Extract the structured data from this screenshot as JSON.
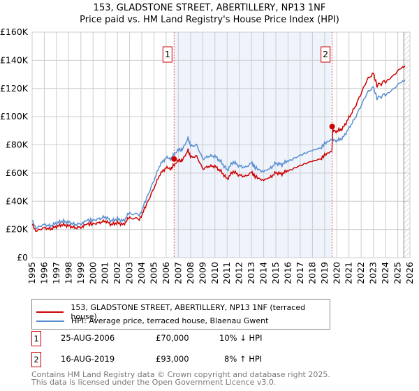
{
  "header": {
    "title": "153, GLADSTONE STREET, ABERTILLERY, NP13 1NF",
    "subtitle": "Price paid vs. HM Land Registry's House Price Index (HPI)"
  },
  "chart_data": {
    "type": "line",
    "xlim": [
      1995,
      2026
    ],
    "ylim": [
      0,
      160000
    ],
    "x_ticks": [
      "1995",
      "1996",
      "1997",
      "1998",
      "1999",
      "2000",
      "2001",
      "2002",
      "2003",
      "2004",
      "2005",
      "2006",
      "2007",
      "2008",
      "2009",
      "2010",
      "2011",
      "2012",
      "2013",
      "2014",
      "2015",
      "2016",
      "2017",
      "2018",
      "2019",
      "2020",
      "2021",
      "2022",
      "2023",
      "2024",
      "2025",
      "2026"
    ],
    "y_ticks": [
      "£0",
      "£20K",
      "£40K",
      "£60K",
      "£80K",
      "£100K",
      "£120K",
      "£140K",
      "£160K"
    ],
    "shaded_region": [
      2006.65,
      2019.62
    ],
    "forecast_hatch_from": 2025.5,
    "series": [
      {
        "name": "153, GLADSTONE STREET, ABERTILLERY, NP13 1NF (terraced house)",
        "color": "#cc0000"
      },
      {
        "name": "HPI: Average price, terraced house, Blaenau Gwent",
        "color": "#5b8fd0",
        "points": [
          [
            1995,
            26.5
          ],
          [
            1995.3,
            21
          ],
          [
            1996,
            23.5
          ],
          [
            1996.5,
            22.5
          ],
          [
            1997,
            24.5
          ],
          [
            1997.5,
            26
          ],
          [
            1998,
            25
          ],
          [
            1998.5,
            23.5
          ],
          [
            1999,
            24
          ],
          [
            1999.4,
            26.5
          ],
          [
            2000,
            26.5
          ],
          [
            2000.5,
            27.5
          ],
          [
            2001,
            29
          ],
          [
            2001.5,
            26
          ],
          [
            2002,
            27.5
          ],
          [
            2002.5,
            26
          ],
          [
            2003,
            32
          ],
          [
            2003.8,
            29.5
          ],
          [
            2004.3,
            40
          ],
          [
            2005,
            55
          ],
          [
            2005.5,
            66
          ],
          [
            2006,
            71
          ],
          [
            2006.4,
            70
          ],
          [
            2006.6,
            73
          ],
          [
            2007,
            77
          ],
          [
            2007.3,
            76
          ],
          [
            2007.8,
            85
          ],
          [
            2008,
            79
          ],
          [
            2008.5,
            80
          ],
          [
            2009,
            70
          ],
          [
            2009.5,
            72
          ],
          [
            2010,
            72
          ],
          [
            2010.5,
            68
          ],
          [
            2011,
            62
          ],
          [
            2011.5,
            68
          ],
          [
            2012,
            65
          ],
          [
            2012.5,
            64
          ],
          [
            2013,
            67
          ],
          [
            2013.3,
            64
          ],
          [
            2013.9,
            61
          ],
          [
            2014.5,
            63
          ],
          [
            2015,
            67
          ],
          [
            2015.5,
            66
          ],
          [
            2016,
            69
          ],
          [
            2017,
            73
          ],
          [
            2018,
            76
          ],
          [
            2018.7,
            78
          ],
          [
            2019,
            81
          ],
          [
            2019.6,
            84
          ],
          [
            2020,
            83
          ],
          [
            2020.5,
            85
          ],
          [
            2021,
            92
          ],
          [
            2021.5,
            99
          ],
          [
            2022,
            108
          ],
          [
            2022.5,
            117
          ],
          [
            2023,
            121
          ],
          [
            2023.3,
            113
          ],
          [
            2024,
            116
          ],
          [
            2025,
            123
          ],
          [
            2025.6,
            126
          ]
        ]
      }
    ],
    "red_factor_before_sale2": 0.9,
    "red_factor_after_sale2": 1.08,
    "sales": [
      {
        "label": "1",
        "x": 2006.65,
        "value": 70000
      },
      {
        "label": "2",
        "x": 2019.62,
        "value": 93000
      }
    ]
  },
  "legend": {
    "items": [
      "153, GLADSTONE STREET, ABERTILLERY, NP13 1NF (terraced house)",
      "HPI: Average price, terraced house, Blaenau Gwent"
    ]
  },
  "transactions": [
    {
      "num": "1",
      "date": "25-AUG-2006",
      "price": "£70,000",
      "hpi": "10% ↓ HPI"
    },
    {
      "num": "2",
      "date": "16-AUG-2019",
      "price": "£93,000",
      "hpi": "8% ↑ HPI"
    }
  ],
  "footer": {
    "line1": "Contains HM Land Registry data © Crown copyright and database right 2025.",
    "line2": "This data is licensed under the Open Government Licence v3.0."
  }
}
